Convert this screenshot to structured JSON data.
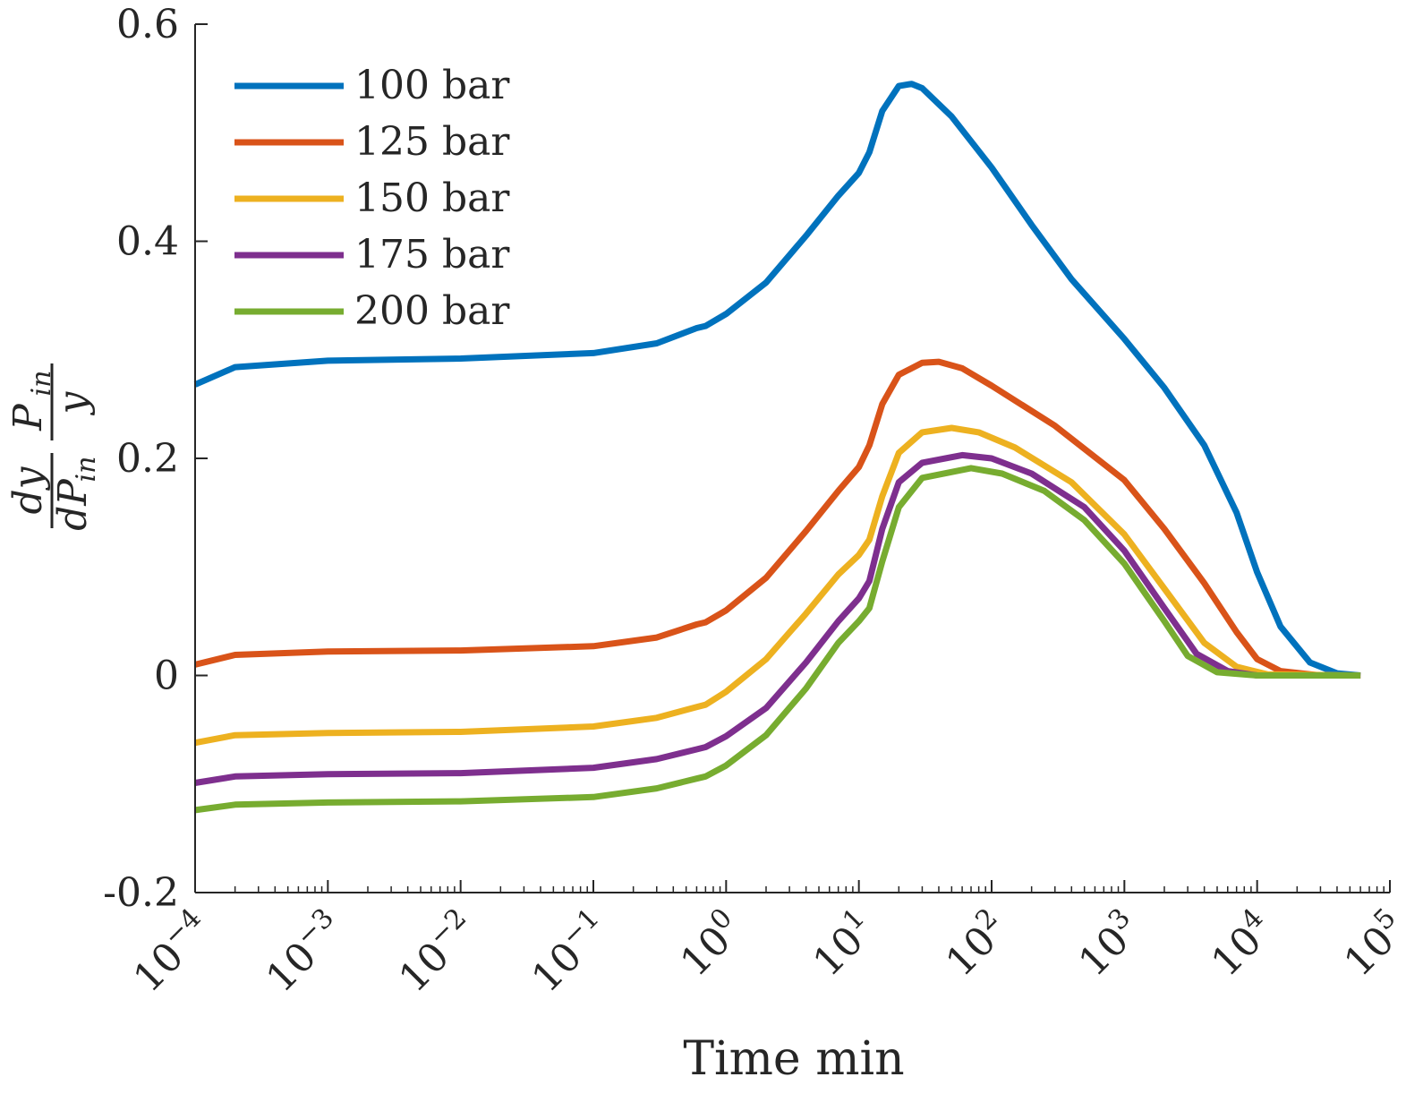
{
  "chart_data": {
    "type": "line",
    "xscale": "log",
    "xlabel": "Time min",
    "ylabel": {
      "num_left": "dy",
      "den_left": "dP",
      "den_left_sub": "in",
      "num_right": "P",
      "num_right_sub": "in",
      "den_right": "y"
    },
    "xlim": [
      0.0001,
      100000
    ],
    "ylim": [
      -0.2,
      0.6
    ],
    "xticks": [
      {
        "value": 0.0001,
        "base": "10",
        "exp": "−4"
      },
      {
        "value": 0.001,
        "base": "10",
        "exp": "−3"
      },
      {
        "value": 0.01,
        "base": "10",
        "exp": "−2"
      },
      {
        "value": 0.1,
        "base": "10",
        "exp": "−1"
      },
      {
        "value": 1,
        "base": "10",
        "exp": "0"
      },
      {
        "value": 10,
        "base": "10",
        "exp": "1"
      },
      {
        "value": 100,
        "base": "10",
        "exp": "2"
      },
      {
        "value": 1000,
        "base": "10",
        "exp": "3"
      },
      {
        "value": 10000,
        "base": "10",
        "exp": "4"
      },
      {
        "value": 100000,
        "base": "10",
        "exp": "5"
      }
    ],
    "yticks": [
      {
        "value": -0.2,
        "label": "-0.2"
      },
      {
        "value": 0,
        "label": "0"
      },
      {
        "value": 0.2,
        "label": "0.2"
      },
      {
        "value": 0.4,
        "label": "0.4"
      },
      {
        "value": 0.6,
        "label": "0.6"
      }
    ],
    "legend_position": "top-left",
    "grid": false,
    "series": [
      {
        "name": "100 bar",
        "color": "#0072BD",
        "points": [
          [
            0.0001,
            0.268
          ],
          [
            0.0002,
            0.284
          ],
          [
            0.001,
            0.29
          ],
          [
            0.01,
            0.292
          ],
          [
            0.1,
            0.297
          ],
          [
            0.3,
            0.306
          ],
          [
            0.6,
            0.32
          ],
          [
            0.7,
            0.322
          ],
          [
            1,
            0.333
          ],
          [
            2,
            0.362
          ],
          [
            4,
            0.405
          ],
          [
            7,
            0.442
          ],
          [
            10,
            0.463
          ],
          [
            12,
            0.482
          ],
          [
            15,
            0.52
          ],
          [
            20,
            0.543
          ],
          [
            25,
            0.545
          ],
          [
            30,
            0.541
          ],
          [
            50,
            0.515
          ],
          [
            100,
            0.468
          ],
          [
            200,
            0.415
          ],
          [
            400,
            0.365
          ],
          [
            1000,
            0.31
          ],
          [
            2000,
            0.265
          ],
          [
            4000,
            0.212
          ],
          [
            7000,
            0.15
          ],
          [
            10000,
            0.095
          ],
          [
            15000,
            0.045
          ],
          [
            25000,
            0.012
          ],
          [
            40000,
            0.002
          ],
          [
            60000,
            0.0
          ]
        ]
      },
      {
        "name": "125 bar",
        "color": "#D95319",
        "points": [
          [
            0.0001,
            0.01
          ],
          [
            0.0002,
            0.019
          ],
          [
            0.001,
            0.022
          ],
          [
            0.01,
            0.023
          ],
          [
            0.1,
            0.027
          ],
          [
            0.3,
            0.035
          ],
          [
            0.6,
            0.047
          ],
          [
            0.7,
            0.049
          ],
          [
            1,
            0.06
          ],
          [
            2,
            0.09
          ],
          [
            4,
            0.133
          ],
          [
            7,
            0.17
          ],
          [
            10,
            0.192
          ],
          [
            12,
            0.212
          ],
          [
            15,
            0.25
          ],
          [
            20,
            0.277
          ],
          [
            30,
            0.288
          ],
          [
            40,
            0.289
          ],
          [
            60,
            0.283
          ],
          [
            100,
            0.267
          ],
          [
            300,
            0.23
          ],
          [
            1000,
            0.18
          ],
          [
            2000,
            0.135
          ],
          [
            4000,
            0.085
          ],
          [
            7000,
            0.04
          ],
          [
            10000,
            0.015
          ],
          [
            15000,
            0.004
          ],
          [
            30000,
            0.0
          ],
          [
            60000,
            0.0
          ]
        ]
      },
      {
        "name": "150 bar",
        "color": "#EDB120",
        "points": [
          [
            0.0001,
            -0.062
          ],
          [
            0.0002,
            -0.055
          ],
          [
            0.001,
            -0.053
          ],
          [
            0.01,
            -0.052
          ],
          [
            0.1,
            -0.047
          ],
          [
            0.3,
            -0.039
          ],
          [
            0.6,
            -0.029
          ],
          [
            0.7,
            -0.027
          ],
          [
            1,
            -0.015
          ],
          [
            2,
            0.015
          ],
          [
            4,
            0.057
          ],
          [
            7,
            0.093
          ],
          [
            10,
            0.111
          ],
          [
            12,
            0.125
          ],
          [
            15,
            0.165
          ],
          [
            20,
            0.205
          ],
          [
            30,
            0.224
          ],
          [
            50,
            0.228
          ],
          [
            80,
            0.224
          ],
          [
            150,
            0.21
          ],
          [
            400,
            0.178
          ],
          [
            1000,
            0.13
          ],
          [
            2000,
            0.08
          ],
          [
            4000,
            0.03
          ],
          [
            7000,
            0.008
          ],
          [
            12000,
            0.001
          ],
          [
            60000,
            0.0
          ]
        ]
      },
      {
        "name": "175 bar",
        "color": "#7E2F8E",
        "points": [
          [
            0.0001,
            -0.099
          ],
          [
            0.0002,
            -0.093
          ],
          [
            0.001,
            -0.091
          ],
          [
            0.01,
            -0.09
          ],
          [
            0.1,
            -0.085
          ],
          [
            0.3,
            -0.077
          ],
          [
            0.6,
            -0.068
          ],
          [
            0.7,
            -0.066
          ],
          [
            1,
            -0.056
          ],
          [
            2,
            -0.03
          ],
          [
            4,
            0.012
          ],
          [
            7,
            0.05
          ],
          [
            10,
            0.071
          ],
          [
            12,
            0.087
          ],
          [
            15,
            0.135
          ],
          [
            20,
            0.178
          ],
          [
            30,
            0.196
          ],
          [
            60,
            0.203
          ],
          [
            100,
            0.2
          ],
          [
            200,
            0.186
          ],
          [
            500,
            0.155
          ],
          [
            1000,
            0.115
          ],
          [
            2000,
            0.062
          ],
          [
            3500,
            0.02
          ],
          [
            6000,
            0.004
          ],
          [
            10000,
            0.0
          ],
          [
            60000,
            0.0
          ]
        ]
      },
      {
        "name": "200 bar",
        "color": "#77AC30",
        "points": [
          [
            0.0001,
            -0.124
          ],
          [
            0.0002,
            -0.119
          ],
          [
            0.001,
            -0.117
          ],
          [
            0.01,
            -0.116
          ],
          [
            0.1,
            -0.112
          ],
          [
            0.3,
            -0.104
          ],
          [
            0.6,
            -0.095
          ],
          [
            0.7,
            -0.093
          ],
          [
            1,
            -0.083
          ],
          [
            2,
            -0.055
          ],
          [
            4,
            -0.012
          ],
          [
            7,
            0.03
          ],
          [
            10,
            0.05
          ],
          [
            12,
            0.062
          ],
          [
            15,
            0.105
          ],
          [
            20,
            0.155
          ],
          [
            30,
            0.182
          ],
          [
            70,
            0.191
          ],
          [
            120,
            0.186
          ],
          [
            250,
            0.17
          ],
          [
            500,
            0.143
          ],
          [
            1000,
            0.103
          ],
          [
            2000,
            0.05
          ],
          [
            3000,
            0.018
          ],
          [
            5000,
            0.003
          ],
          [
            10000,
            0.0
          ],
          [
            60000,
            0.0
          ]
        ]
      }
    ]
  }
}
